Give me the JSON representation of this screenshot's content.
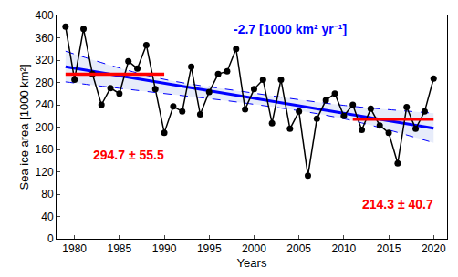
{
  "chart_data": {
    "type": "line",
    "xlabel": "Years",
    "ylabel": "Sea ice area [1000 km²]",
    "x": [
      1979,
      1980,
      1981,
      1982,
      1983,
      1984,
      1985,
      1986,
      1987,
      1988,
      1989,
      1990,
      1991,
      1992,
      1993,
      1994,
      1995,
      1996,
      1997,
      1998,
      1999,
      2000,
      2001,
      2002,
      2003,
      2004,
      2005,
      2006,
      2007,
      2008,
      2009,
      2010,
      2011,
      2012,
      2013,
      2014,
      2015,
      2016,
      2017,
      2018,
      2019,
      2020
    ],
    "series": [
      {
        "color": "#000000",
        "marker": "circle",
        "line_style": "solid",
        "values": [
          380,
          285,
          376,
          295,
          240,
          270,
          260,
          318,
          305,
          347,
          268,
          190,
          237,
          228,
          308,
          223,
          263,
          295,
          300,
          340,
          232,
          268,
          285,
          207,
          285,
          197,
          228,
          113,
          215,
          248,
          260,
          220,
          240,
          195,
          233,
          203,
          190,
          135,
          236,
          197,
          228,
          287
        ]
      }
    ],
    "trend": {
      "x": [
        1979,
        2020
      ],
      "values": [
        308,
        198
      ],
      "color": "#0000ff",
      "line_style": "solid"
    },
    "band": {
      "x": [
        1979,
        1989,
        1999.5,
        2010,
        2020
      ],
      "upper": [
        336,
        289,
        262,
        239,
        225
      ],
      "lower": [
        281,
        262,
        242,
        215,
        172
      ],
      "color": "#0000ff",
      "line_style": "dash"
    },
    "means": [
      {
        "x": [
          1979,
          1990
        ],
        "value": 294.7,
        "error": 55.5,
        "color": "#ff0000"
      },
      {
        "x": [
          2011,
          2020
        ],
        "value": 214.3,
        "error": 40.7,
        "color": "#ff0000"
      }
    ],
    "annotations": [
      {
        "text": "-2.7 [1000 km² yr⁻¹]",
        "x": 2004,
        "y": 375,
        "color": "#0000ff"
      },
      {
        "text": "294.7 ± 55.5",
        "x": 1986,
        "y": 150,
        "color": "#ff0000"
      },
      {
        "text": "214.3 ± 40.7",
        "x": 2016,
        "y": 62,
        "color": "#ff0000"
      }
    ],
    "xlim": [
      1978,
      2021.5
    ],
    "xticks": [
      1980,
      1985,
      1990,
      1995,
      2000,
      2005,
      2010,
      2015,
      2020
    ],
    "ylim": [
      0,
      400
    ],
    "yticks": [
      0,
      40,
      80,
      120,
      160,
      200,
      240,
      280,
      320,
      360,
      400
    ],
    "grid": false
  }
}
